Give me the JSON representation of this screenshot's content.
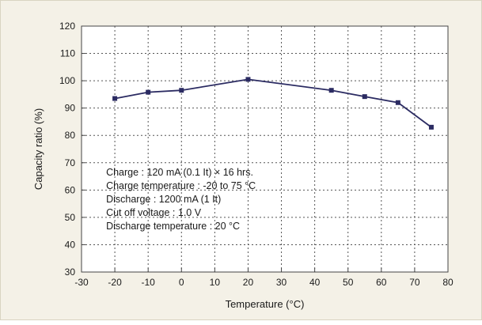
{
  "chart_data": {
    "type": "line",
    "xlabel": "Temperature (°C)",
    "ylabel": "Capacity ratio (%)",
    "xlim": [
      -30,
      80
    ],
    "ylim": [
      30,
      120
    ],
    "x_ticks": [
      -30,
      -20,
      -10,
      0,
      10,
      20,
      30,
      40,
      50,
      60,
      70,
      80
    ],
    "y_ticks": [
      30,
      40,
      50,
      60,
      70,
      80,
      90,
      100,
      110,
      120
    ],
    "grid": true,
    "series": [
      {
        "color": "#2b2b62",
        "x": [
          -20,
          -10,
          0,
          20,
          45,
          55,
          65,
          75
        ],
        "y": [
          93.5,
          95.8,
          96.5,
          100.5,
          96.5,
          94.2,
          92,
          83
        ]
      }
    ],
    "annotations": [
      "Charge : 120 mA (0.1 It) × 16 hrs.",
      "Charge temperature : -20 to 75 °C",
      "Discharge : 1200 mA (1 It)",
      "Cut off voltage : 1.0 V",
      "Discharge temperature : 20 °C"
    ]
  }
}
